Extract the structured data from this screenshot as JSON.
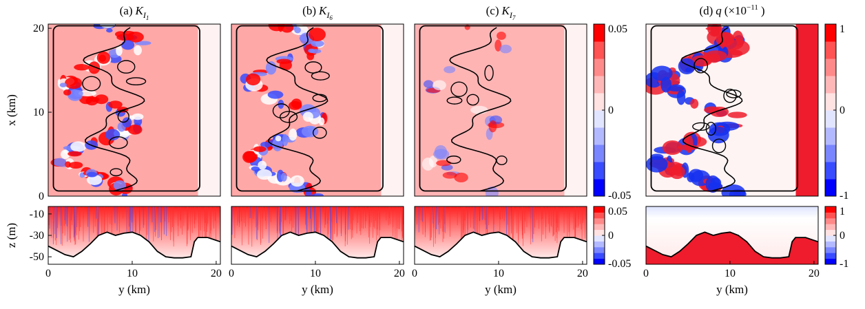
{
  "chart_data": [
    {
      "type": "heatmap",
      "title": [
        {
          "text": "(a)",
          "style": "normal"
        },
        {
          "text": "K",
          "style": "italic"
        },
        {
          "text": "I",
          "style": "sub"
        },
        {
          "text": "1",
          "style": "subsub"
        }
      ],
      "ylabel": "x (km)",
      "xlim": [
        0,
        20.5
      ],
      "ylim": [
        0,
        20.5
      ],
      "yticks": [
        0,
        10,
        20
      ]
    },
    {
      "type": "heatmap",
      "title": [
        {
          "text": "(b)",
          "style": "normal"
        },
        {
          "text": "K",
          "style": "italic"
        },
        {
          "text": "I",
          "style": "sub"
        },
        {
          "text": "6",
          "style": "subsub"
        }
      ],
      "xlim": [
        0,
        20.5
      ],
      "ylim": [
        0,
        20.5
      ]
    },
    {
      "type": "heatmap",
      "title": [
        {
          "text": "(c)",
          "style": "normal"
        },
        {
          "text": "K",
          "style": "italic"
        },
        {
          "text": "I",
          "style": "sub"
        },
        {
          "text": "7",
          "style": "subsub"
        }
      ],
      "xlim": [
        0,
        20.5
      ],
      "ylim": [
        0,
        20.5
      ],
      "colorbar": {
        "clim": [
          -0.05,
          0.05
        ],
        "ticks": [
          0.05,
          0,
          -0.05
        ]
      }
    },
    {
      "type": "heatmap",
      "title": [
        {
          "text": "(d)",
          "style": "normal"
        },
        {
          "text": "q",
          "style": "italic"
        },
        {
          "text": "(×10",
          "style": "normal"
        },
        {
          "text": "−11",
          "style": "sup"
        },
        {
          "text": ")",
          "style": "normal"
        }
      ],
      "xlim": [
        0,
        20.5
      ],
      "ylim": [
        0,
        20.5
      ],
      "colorbar": {
        "clim": [
          -1,
          1
        ],
        "ticks": [
          1,
          0,
          -1
        ]
      }
    },
    {
      "type": "section",
      "ylabel": "z (m)",
      "xlabel": "y (km)",
      "xlim": [
        0,
        20.5
      ],
      "xticks": [
        0,
        10,
        20
      ],
      "ylim": [
        -57,
        -3
      ],
      "yticks": [
        -10,
        -30,
        -50
      ]
    },
    {
      "type": "section",
      "xlabel": "y (km)",
      "xlim": [
        0,
        20.5
      ],
      "xticks": [
        0,
        10,
        20
      ],
      "ylim": [
        -57,
        -3
      ]
    },
    {
      "type": "section",
      "xlabel": "y (km)",
      "xlim": [
        0,
        20.5
      ],
      "xticks": [
        0,
        10,
        20
      ],
      "ylim": [
        -57,
        -3
      ],
      "colorbar": {
        "clim": [
          -0.05,
          0.05
        ],
        "ticks": [
          0.05,
          0,
          -0.05
        ]
      }
    },
    {
      "type": "section",
      "xlabel": "y (km)",
      "xlim": [
        0,
        20.5
      ],
      "xticks": [
        0,
        10,
        20
      ],
      "ylim": [
        -57,
        -3
      ],
      "colorbar": {
        "clim": [
          -1,
          1
        ],
        "ticks": [
          1,
          0,
          -1
        ]
      }
    }
  ]
}
